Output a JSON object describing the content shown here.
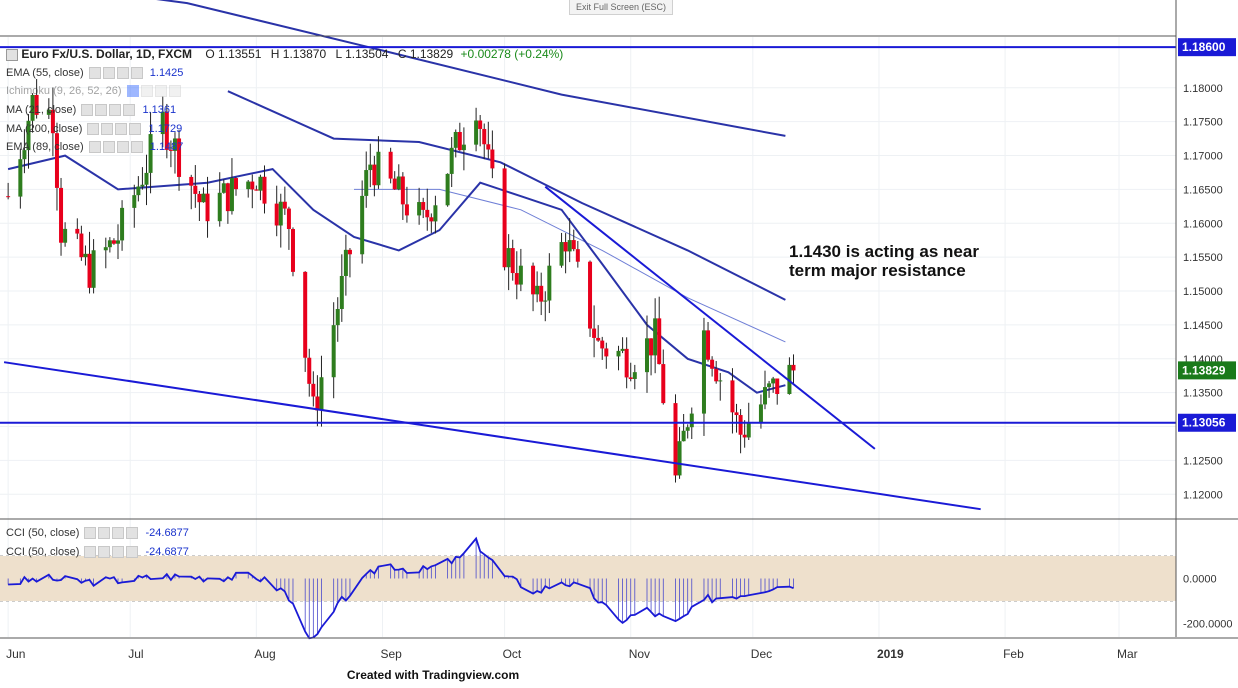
{
  "window": {
    "exit_label": "Exit Full Screen (ESC)"
  },
  "header": {
    "symbol": "Euro Fx/U.S. Dollar, 1D, FXCM",
    "open": "O 1.13551",
    "high": "H 1.13870",
    "low": "L 1.13504",
    "close": "C 1.13829",
    "change": "+0.00278 (+0.24%)"
  },
  "indicators": [
    {
      "label": "EMA (55, close)",
      "value": "1.1425"
    },
    {
      "label": "Ichimoku (9, 26, 52, 26)",
      "value": ""
    },
    {
      "label": "MA (21, close)",
      "value": "1.1361"
    },
    {
      "label": "MA (200, close)",
      "value": "1.1729"
    },
    {
      "label": "EMA (89, close)",
      "value": "1.1487"
    }
  ],
  "cci": [
    {
      "label": "CCI (50, close)",
      "value": "-24.6877"
    },
    {
      "label": "CCI (50, close)",
      "value": "-24.6877"
    }
  ],
  "annotation": "1.1430 is acting as near\nterm major resistance",
  "footer": "Created with Tradingview.com",
  "colors": {
    "up": "#2e7d1e",
    "down": "#e8001c",
    "line": "#1a1ad6",
    "cci_band": "#eee0cc",
    "price_tag": "#1a7a1a"
  },
  "chart_data": [
    {
      "type": "candlestick",
      "title": "Euro Fx/U.S. Dollar, 1D, FXCM",
      "x_range": [
        "2018-05-30",
        "2019-03-15"
      ],
      "ylim": [
        1.1165,
        1.1875
      ],
      "y_ticks": [
        "1.12000",
        "1.12500",
        "1.13000",
        "1.13500",
        "1.14000",
        "1.14500",
        "1.15000",
        "1.15500",
        "1.16000",
        "1.16500",
        "1.17000",
        "1.17500",
        "1.18000"
      ],
      "x_ticks": [
        "Jun",
        "Jul",
        "Aug",
        "Sep",
        "Oct",
        "Nov",
        "Dec",
        "2019",
        "Feb",
        "Mar"
      ],
      "x_tick_dates": [
        "2018-06-01",
        "2018-07-01",
        "2018-08-01",
        "2018-09-01",
        "2018-10-01",
        "2018-11-01",
        "2018-12-01",
        "2019-01-01",
        "2019-02-01",
        "2019-03-01"
      ],
      "price_labels": [
        {
          "value": 1.186,
          "text": "1.18600",
          "style": "line"
        },
        {
          "value": 1.13829,
          "text": "1.13829",
          "style": "price"
        },
        {
          "value": 1.13056,
          "text": "1.13056",
          "style": "line"
        }
      ],
      "horizontal_lines": [
        1.186,
        1.13056
      ],
      "trendlines": [
        {
          "name": "down-trendline",
          "from": [
            "2018-10-11",
            1.1654
          ],
          "to": [
            "2018-12-31",
            1.1267
          ]
        },
        {
          "name": "channel-lower",
          "from": [
            "2018-05-31",
            1.1395
          ],
          "to": [
            "2019-01-26",
            1.1178
          ]
        }
      ],
      "anchors": [
        [
          "2018-06-01",
          1.164
        ],
        [
          "2018-06-07",
          1.178
        ],
        [
          "2018-06-12",
          1.176
        ],
        [
          "2018-06-14",
          1.159
        ],
        [
          "2018-06-21",
          1.153
        ],
        [
          "2018-06-28",
          1.158
        ],
        [
          "2018-07-09",
          1.175
        ],
        [
          "2018-07-19",
          1.162
        ],
        [
          "2018-08-01",
          1.167
        ],
        [
          "2018-08-09",
          1.16
        ],
        [
          "2018-08-15",
          1.132
        ],
        [
          "2018-08-29",
          1.169
        ],
        [
          "2018-09-11",
          1.16
        ],
        [
          "2018-09-24",
          1.178
        ],
        [
          "2018-10-01",
          1.156
        ],
        [
          "2018-10-09",
          1.148
        ],
        [
          "2018-10-16",
          1.158
        ],
        [
          "2018-10-24",
          1.142
        ],
        [
          "2018-11-01",
          1.14
        ],
        [
          "2018-11-07",
          1.143
        ],
        [
          "2018-11-12",
          1.122
        ],
        [
          "2018-11-19",
          1.144
        ],
        [
          "2018-11-28",
          1.129
        ],
        [
          "2018-12-05",
          1.135
        ],
        [
          "2018-12-11",
          1.1383
        ]
      ],
      "overlays": [
        {
          "name": "MA (200, close)",
          "points": [
            [
              "2018-06-01",
              1.196
            ],
            [
              "2018-07-15",
              1.1925
            ],
            [
              "2018-09-01",
              1.1855
            ],
            [
              "2018-10-15",
              1.179
            ],
            [
              "2018-12-09",
              1.1729
            ]
          ]
        },
        {
          "name": "EMA (89, close)",
          "points": [
            [
              "2018-07-25",
              1.1795
            ],
            [
              "2018-08-20",
              1.1725
            ],
            [
              "2018-09-10",
              1.172
            ],
            [
              "2018-09-30",
              1.169
            ],
            [
              "2018-10-20",
              1.163
            ],
            [
              "2018-11-15",
              1.156
            ],
            [
              "2018-12-09",
              1.1487
            ]
          ]
        },
        {
          "name": "EMA (55, close)",
          "points": [
            [
              "2018-08-25",
              1.165
            ],
            [
              "2018-09-15",
              1.165
            ],
            [
              "2018-10-05",
              1.162
            ],
            [
              "2018-10-25",
              1.156
            ],
            [
              "2018-11-15",
              1.149
            ],
            [
              "2018-12-09",
              1.1425
            ]
          ]
        },
        {
          "name": "MA (21, close)",
          "points": [
            [
              "2018-06-01",
              1.168
            ],
            [
              "2018-06-15",
              1.17
            ],
            [
              "2018-06-28",
              1.165
            ],
            [
              "2018-07-20",
              1.166
            ],
            [
              "2018-08-05",
              1.168
            ],
            [
              "2018-08-15",
              1.162
            ],
            [
              "2018-08-25",
              1.158
            ],
            [
              "2018-09-05",
              1.156
            ],
            [
              "2018-09-15",
              1.159
            ],
            [
              "2018-09-25",
              1.166
            ],
            [
              "2018-10-05",
              1.164
            ],
            [
              "2018-10-15",
              1.162
            ],
            [
              "2018-10-25",
              1.154
            ],
            [
              "2018-11-05",
              1.145
            ],
            [
              "2018-11-15",
              1.14
            ],
            [
              "2018-11-25",
              1.138
            ],
            [
              "2018-12-02",
              1.135
            ],
            [
              "2018-12-09",
              1.1361
            ]
          ]
        }
      ]
    },
    {
      "type": "line",
      "title": "CCI (50, close)",
      "ylim": [
        -260,
        260
      ],
      "y_ticks": [
        "0.0000",
        "-200.0000"
      ],
      "band": [
        -100,
        100
      ],
      "x_range": [
        "2018-05-30",
        "2019-03-15"
      ],
      "points": [
        [
          "2018-06-01",
          -20
        ],
        [
          "2018-06-10",
          0
        ],
        [
          "2018-06-20",
          -15
        ],
        [
          "2018-07-01",
          -5
        ],
        [
          "2018-07-10",
          10
        ],
        [
          "2018-07-20",
          5
        ],
        [
          "2018-08-01",
          10
        ],
        [
          "2018-08-08",
          -60
        ],
        [
          "2018-08-15",
          -280
        ],
        [
          "2018-08-22",
          -100
        ],
        [
          "2018-09-01",
          70
        ],
        [
          "2018-09-10",
          30
        ],
        [
          "2018-09-20",
          90
        ],
        [
          "2018-09-24",
          160
        ],
        [
          "2018-10-01",
          10
        ],
        [
          "2018-10-09",
          -60
        ],
        [
          "2018-10-15",
          -10
        ],
        [
          "2018-10-22",
          -60
        ],
        [
          "2018-10-29",
          -190
        ],
        [
          "2018-11-05",
          -140
        ],
        [
          "2018-11-12",
          -200
        ],
        [
          "2018-11-20",
          -90
        ],
        [
          "2018-11-28",
          -70
        ],
        [
          "2018-12-05",
          -40
        ],
        [
          "2018-12-11",
          -24.6877
        ]
      ]
    }
  ]
}
